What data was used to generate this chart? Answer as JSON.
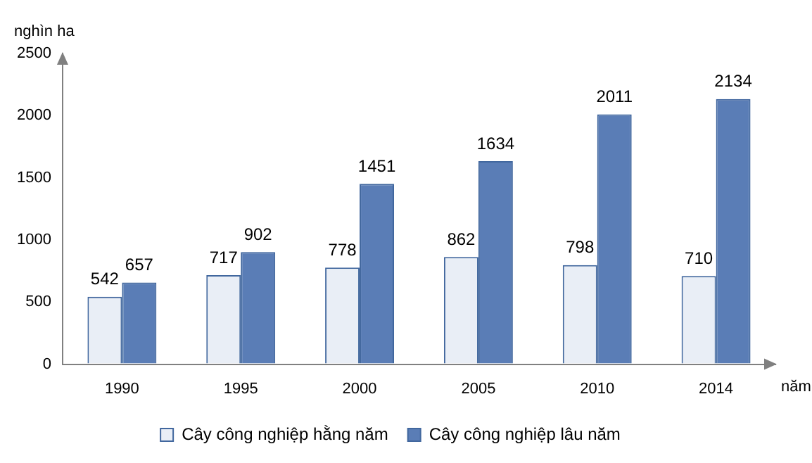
{
  "chart_data": {
    "type": "bar",
    "ylabel": "nghìn ha",
    "xlabel": "năm",
    "categories": [
      "1990",
      "1995",
      "2000",
      "2005",
      "2010",
      "2014"
    ],
    "series": [
      {
        "name": "Cây công nghiệp hằng năm",
        "color": "#e9eef6",
        "values": [
          542,
          717,
          778,
          862,
          798,
          710
        ]
      },
      {
        "name": "Cây công nghiệp lâu năm",
        "color": "#5a7db6",
        "values": [
          657,
          902,
          1451,
          1634,
          2011,
          2134
        ]
      }
    ],
    "ylim": [
      0,
      2500
    ],
    "yticks": [
      0,
      500,
      1000,
      1500,
      2000,
      2500
    ],
    "grid": false,
    "legend": "bottom",
    "data_labels": true
  }
}
